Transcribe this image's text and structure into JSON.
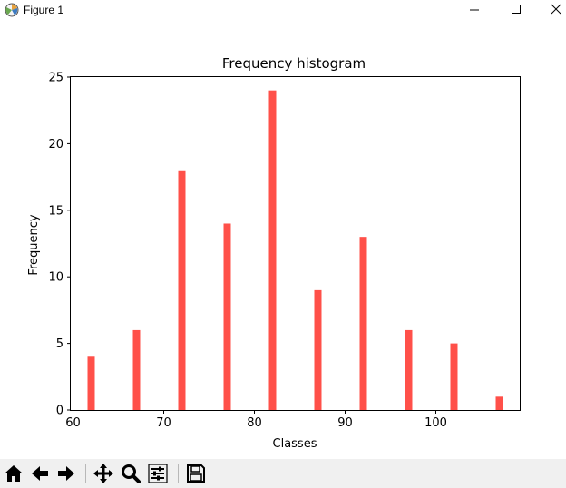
{
  "window": {
    "title": "Figure 1",
    "icon": "matplotlib-icon",
    "controls": [
      "minimize-icon",
      "maximize-icon",
      "close-icon"
    ]
  },
  "chart_data": {
    "type": "bar",
    "title": "Frequency histogram",
    "xlabel": "Classes",
    "ylabel": "Frequency",
    "x": [
      62,
      67,
      72,
      77,
      82,
      87,
      92,
      97,
      102,
      107
    ],
    "values": [
      4,
      6,
      18,
      14,
      24,
      9,
      13,
      6,
      5,
      1
    ],
    "xlim": [
      59.75,
      109.25
    ],
    "ylim": [
      0,
      25
    ],
    "xticks": [
      60,
      70,
      80,
      90,
      100
    ],
    "yticks": [
      0,
      5,
      10,
      15,
      20,
      25
    ],
    "bar_color": "#ff5049",
    "bar_width": 0.8,
    "grid": false
  },
  "toolbar": {
    "buttons": [
      "home-icon",
      "back-icon",
      "forward-icon",
      "pan-icon",
      "zoom-icon",
      "configure-subplots-icon",
      "save-icon"
    ]
  }
}
